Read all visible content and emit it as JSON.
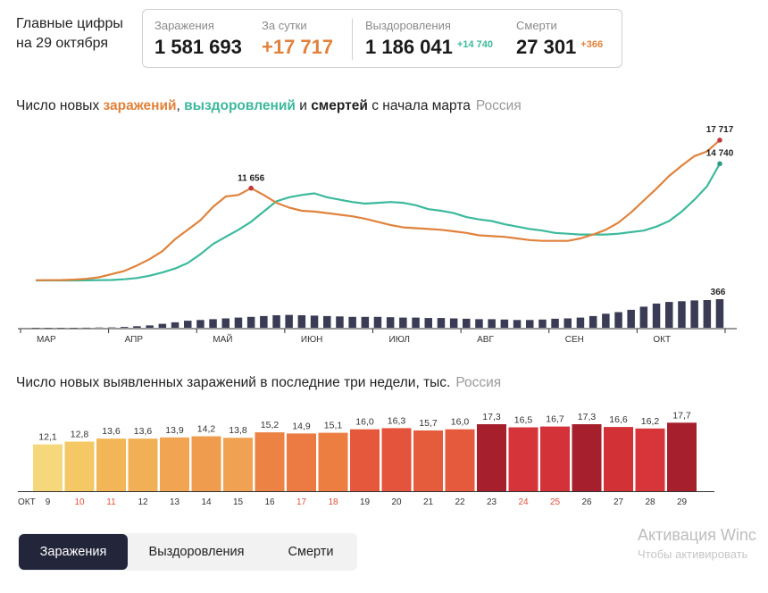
{
  "headline": {
    "line1": "Главные цифры",
    "line2": "на 29 октября"
  },
  "summary": {
    "infections": {
      "label": "Заражения",
      "value": "1 581 693"
    },
    "daily": {
      "label": "За сутки",
      "value": "+17 717"
    },
    "recoveries": {
      "label": "Выздоровления",
      "value": "1 186 041",
      "delta": "+14 740"
    },
    "deaths": {
      "label": "Смерти",
      "value": "27 301",
      "delta": "+366"
    }
  },
  "chart1_title": {
    "prefix": "Число новых ",
    "w1": "заражений",
    "sep1": ", ",
    "w2": "выздоровлений",
    "sep2": " и ",
    "w3": "смертей",
    "suffix": " с начала марта",
    "region": "Россия"
  },
  "chart2_title": {
    "text": "Число новых выявленных заражений в последние три недели, тыс.",
    "region": "Россия"
  },
  "colors": {
    "infections": "#e0823c",
    "recoveries": "#3cb99c",
    "deaths": "#3a3b55",
    "weekend": "#e0503c",
    "tab_active": "#23253a"
  },
  "chart_data": [
    {
      "type": "line",
      "x_labels": [
        "МАР",
        "АПР",
        "МАЙ",
        "ИЮН",
        "ИЮЛ",
        "АВГ",
        "СЕН",
        "ОКТ"
      ],
      "series": [
        {
          "key": "infections",
          "values": [
            20,
            30,
            50,
            100,
            200,
            400,
            800,
            1200,
            1900,
            2700,
            3700,
            5200,
            6400,
            7600,
            9300,
            10600,
            10800,
            11656,
            10800,
            9800,
            9200,
            8800,
            8700,
            8500,
            8300,
            8100,
            7800,
            7400,
            7000,
            6700,
            6600,
            6500,
            6400,
            6200,
            6000,
            5700,
            5600,
            5500,
            5300,
            5100,
            5000,
            5000,
            5000,
            5300,
            5800,
            6400,
            7300,
            8600,
            10100,
            11600,
            13200,
            14500,
            15700,
            16300,
            17717
          ]
        },
        {
          "key": "recoveries",
          "values": [
            0,
            0,
            0,
            0,
            10,
            30,
            60,
            150,
            300,
            600,
            1000,
            1500,
            2200,
            3300,
            4600,
            5500,
            6400,
            7400,
            8700,
            10000,
            10500,
            10800,
            11000,
            10500,
            10200,
            9900,
            9700,
            9800,
            9900,
            9800,
            9500,
            9000,
            8800,
            8500,
            8000,
            7700,
            7500,
            7100,
            6800,
            6500,
            6300,
            6000,
            5900,
            5800,
            5800,
            5800,
            5900,
            6100,
            6300,
            6800,
            7500,
            8700,
            10200,
            11900,
            14740
          ]
        },
        {
          "key": "deaths",
          "values": [
            0,
            0,
            0,
            0,
            1,
            3,
            5,
            10,
            20,
            30,
            50,
            70,
            90,
            100,
            110,
            120,
            130,
            140,
            150,
            160,
            165,
            160,
            155,
            150,
            145,
            140,
            140,
            140,
            135,
            130,
            130,
            125,
            125,
            120,
            115,
            110,
            110,
            105,
            100,
            100,
            105,
            115,
            120,
            130,
            150,
            180,
            200,
            230,
            270,
            310,
            330,
            340,
            350,
            355,
            366
          ]
        }
      ],
      "annotations": [
        {
          "series": "infections",
          "label": "11 656",
          "value": 11656
        },
        {
          "series": "infections",
          "label": "17 717",
          "value": 17717
        },
        {
          "series": "recoveries",
          "label": "14 740",
          "value": 14740
        },
        {
          "series": "deaths",
          "label": "366",
          "value": 366
        }
      ]
    },
    {
      "type": "bar",
      "axis_label": "ОКТ",
      "categories": [
        "9",
        "10",
        "11",
        "12",
        "13",
        "14",
        "15",
        "16",
        "17",
        "18",
        "19",
        "20",
        "21",
        "22",
        "23",
        "24",
        "25",
        "26",
        "27",
        "28",
        "29"
      ],
      "values": [
        12.1,
        12.8,
        13.6,
        13.6,
        13.9,
        14.2,
        13.8,
        15.2,
        14.9,
        15.1,
        16.0,
        16.3,
        15.7,
        16.0,
        17.3,
        16.5,
        16.7,
        17.3,
        16.6,
        16.2,
        17.7
      ],
      "labels": [
        "12,1",
        "12,8",
        "13,6",
        "13,6",
        "13,9",
        "14,2",
        "13,8",
        "15,2",
        "14,9",
        "15,1",
        "16,0",
        "16,3",
        "15,7",
        "16,0",
        "17,3",
        "16,5",
        "16,7",
        "17,3",
        "16,6",
        "16,2",
        "17,7"
      ],
      "weekend_categories": [
        "10",
        "11",
        "17",
        "18",
        "24",
        "25"
      ],
      "bar_colors": [
        "#f5d77c",
        "#f4c865",
        "#f2b658",
        "#f1b055",
        "#f1a452",
        "#f09c4e",
        "#f0a252",
        "#ec8344",
        "#eb7b42",
        "#ec7e42",
        "#e5583b",
        "#e4533b",
        "#e55c3c",
        "#e55a3c",
        "#a51f2c",
        "#d5343a",
        "#d23238",
        "#a51f2c",
        "#d23236",
        "#d8353a",
        "#a51f2c"
      ]
    }
  ],
  "tabs": [
    {
      "key": "infections",
      "label": "Заражения",
      "active": true
    },
    {
      "key": "recoveries",
      "label": "Выздоровления",
      "active": false
    },
    {
      "key": "deaths",
      "label": "Смерти",
      "active": false
    }
  ],
  "watermark": {
    "line1": "Активация Winc",
    "line2": "Чтобы активировать"
  }
}
